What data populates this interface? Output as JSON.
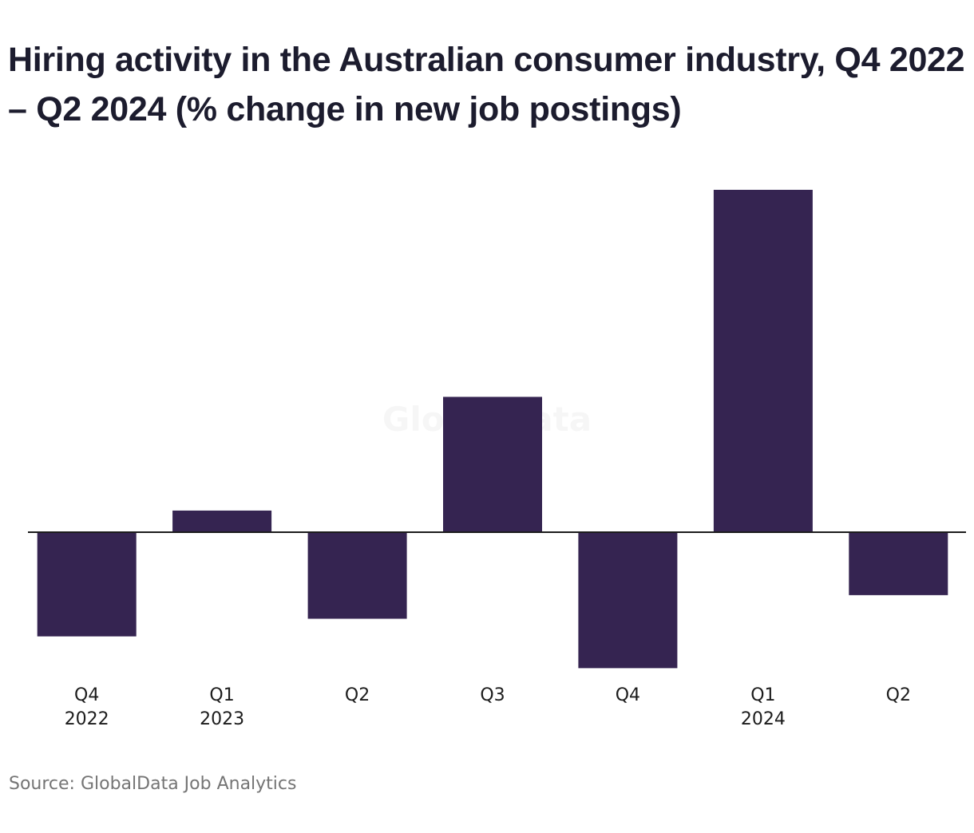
{
  "chart_data": {
    "type": "bar",
    "title": "Hiring activity in the Australian consumer industry, Q4 2022 – Q2 2024 (% change in new job postings)",
    "xlabel": "",
    "ylabel": "",
    "categories": [
      {
        "quarter": "Q4",
        "year": "2022"
      },
      {
        "quarter": "Q1",
        "year": "2023"
      },
      {
        "quarter": "Q2",
        "year": ""
      },
      {
        "quarter": "Q3",
        "year": ""
      },
      {
        "quarter": "Q4",
        "year": ""
      },
      {
        "quarter": "Q1",
        "year": "2024"
      },
      {
        "quarter": "Q2",
        "year": ""
      }
    ],
    "values": [
      -15.4,
      3.2,
      -12.8,
      20.0,
      -20.1,
      50.6,
      -9.3
    ],
    "ylim": [
      -25,
      55
    ],
    "grid": false,
    "bar_color": "#352451",
    "watermark": "GlobalData",
    "source": "Source: GlobalData Job Analytics"
  }
}
